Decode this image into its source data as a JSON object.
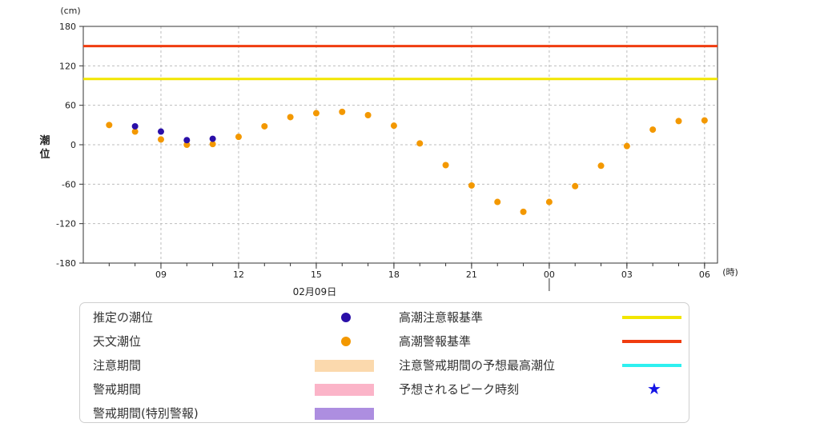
{
  "chart_data": {
    "type": "scatter",
    "y_unit": "(cm)",
    "ylabel": "潮位",
    "x_unit": "(時)",
    "ylim": [
      -180,
      180
    ],
    "yticks": [
      180,
      120,
      60,
      0,
      -60,
      -120,
      -180
    ],
    "x_hours_range": [
      6,
      30.5
    ],
    "xtick_labels": [
      {
        "hour": 9,
        "label": "09"
      },
      {
        "hour": 12,
        "label": "12"
      },
      {
        "hour": 15,
        "label": "15"
      },
      {
        "hour": 18,
        "label": "18"
      },
      {
        "hour": 21,
        "label": "21"
      },
      {
        "hour": 24,
        "label": "00"
      },
      {
        "hour": 27,
        "label": "03"
      },
      {
        "hour": 30,
        "label": "06"
      }
    ],
    "date_label": "02月09日",
    "date_label_hour": 15,
    "day_marker_hour": 24,
    "grid": true,
    "series": [
      {
        "name": "天文潮位",
        "color": "#f39800",
        "points": [
          [
            7,
            30
          ],
          [
            8,
            20
          ],
          [
            9,
            8
          ],
          [
            10,
            0
          ],
          [
            11,
            1
          ],
          [
            12,
            12
          ],
          [
            13,
            28
          ],
          [
            14,
            42
          ],
          [
            15,
            48
          ],
          [
            16,
            50
          ],
          [
            17,
            45
          ],
          [
            18,
            29
          ],
          [
            19,
            2
          ],
          [
            20,
            -31
          ],
          [
            21,
            -62
          ],
          [
            22,
            -87
          ],
          [
            23,
            -102
          ],
          [
            24,
            -87
          ],
          [
            25,
            -63
          ],
          [
            26,
            -32
          ],
          [
            27,
            -2
          ],
          [
            28,
            23
          ],
          [
            29,
            36
          ],
          [
            30,
            37
          ]
        ]
      },
      {
        "name": "推定の潮位",
        "color": "#2a0fa8",
        "points": [
          [
            8,
            28
          ],
          [
            9,
            20
          ],
          [
            10,
            7
          ],
          [
            11,
            9
          ]
        ]
      }
    ],
    "reference_lines": [
      {
        "name": "高潮警報基準",
        "value": 150,
        "color": "#f03c0f"
      },
      {
        "name": "高潮注意報基準",
        "value": 100,
        "color": "#f2e600"
      }
    ]
  },
  "legend": {
    "left": [
      {
        "label": "推定の潮位",
        "kind": "dot",
        "color": "#2a0fa8"
      },
      {
        "label": "天文潮位",
        "kind": "dot",
        "color": "#f39800"
      },
      {
        "label": "注意期間",
        "kind": "band",
        "color": "#fbd9ad"
      },
      {
        "label": "警戒期間",
        "kind": "band",
        "color": "#fbb4c8"
      },
      {
        "label": "警戒期間(特別警報)",
        "kind": "band",
        "color": "#ad8ee0"
      }
    ],
    "right": [
      {
        "label": "高潮注意報基準",
        "kind": "line",
        "color": "#f2e600"
      },
      {
        "label": "高潮警報基準",
        "kind": "line",
        "color": "#f03c0f"
      },
      {
        "label": "注意警戒期間の予想最高潮位",
        "kind": "line",
        "color": "#2ef0f0"
      },
      {
        "label": "予想されるピーク時刻",
        "kind": "star",
        "color": "#1414e6"
      }
    ]
  }
}
